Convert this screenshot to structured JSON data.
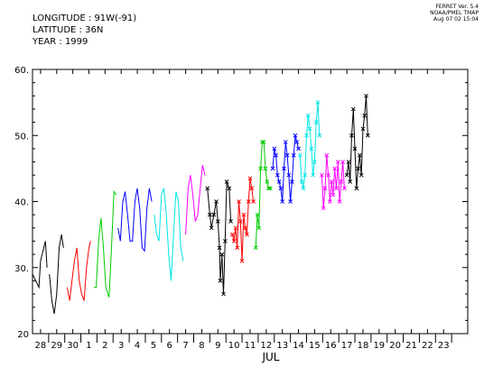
{
  "header": {
    "longitude": "LONGITUDE : 91W(-91)",
    "latitude": "LATITUDE : 36N",
    "year": "YEAR : 1999"
  },
  "credit": {
    "line1": "FERRET Ver. 5.4",
    "line2": "NOAA/PMEL TMAP",
    "line3": "Aug 07 02 15:04"
  },
  "chart_data": {
    "type": "line",
    "xlabel": "JUL",
    "ylabel": "",
    "ylim": [
      20,
      60
    ],
    "yticks": [
      20,
      30,
      40,
      50,
      60
    ],
    "ytick_labels": [
      "20",
      "30.",
      "40.",
      "50.",
      "60."
    ],
    "xlim": [
      -3.5,
      23.5
    ],
    "xticks": [
      {
        "value": -3,
        "label": "28"
      },
      {
        "value": -2,
        "label": "29"
      },
      {
        "value": -1,
        "label": "30"
      },
      {
        "value": 0,
        "label": "1"
      },
      {
        "value": 1,
        "label": "2"
      },
      {
        "value": 2,
        "label": "3"
      },
      {
        "value": 3,
        "label": "4"
      },
      {
        "value": 4,
        "label": "5"
      },
      {
        "value": 5,
        "label": "6"
      },
      {
        "value": 6,
        "label": "7"
      },
      {
        "value": 7,
        "label": "8"
      },
      {
        "value": 8,
        "label": "9"
      },
      {
        "value": 9,
        "label": "10"
      },
      {
        "value": 10,
        "label": "11"
      },
      {
        "value": 11,
        "label": "12"
      },
      {
        "value": 12,
        "label": "13"
      },
      {
        "value": 13,
        "label": "14"
      },
      {
        "value": 14,
        "label": "15"
      },
      {
        "value": 15,
        "label": "16"
      },
      {
        "value": 16,
        "label": "17"
      },
      {
        "value": 17,
        "label": "18"
      },
      {
        "value": 18,
        "label": "19"
      },
      {
        "value": 19,
        "label": "20"
      },
      {
        "value": 20,
        "label": "21"
      },
      {
        "value": 21,
        "label": "22"
      },
      {
        "value": 22,
        "label": "23"
      }
    ],
    "grid": false,
    "series": [
      {
        "color": "#000000",
        "markers": false,
        "points": [
          [
            -3.5,
            29
          ],
          [
            -3.3,
            28
          ],
          [
            -3.1,
            27
          ],
          [
            -3.0,
            31
          ],
          [
            -2.85,
            32.5
          ],
          [
            -2.7,
            34
          ],
          [
            -2.6,
            30
          ]
        ]
      },
      {
        "color": "#000000",
        "markers": false,
        "points": [
          [
            -2.45,
            29
          ],
          [
            -2.3,
            25
          ],
          [
            -2.15,
            23
          ],
          [
            -2.0,
            26
          ],
          [
            -1.85,
            33
          ],
          [
            -1.7,
            35
          ],
          [
            -1.58,
            33
          ]
        ]
      },
      {
        "color": "#ff0000",
        "markers": false,
        "points": [
          [
            -1.35,
            27
          ],
          [
            -1.2,
            25
          ],
          [
            -1.05,
            28
          ],
          [
            -0.9,
            31
          ],
          [
            -0.75,
            33
          ],
          [
            -0.6,
            28
          ],
          [
            -0.45,
            26
          ],
          [
            -0.3,
            25
          ],
          [
            -0.15,
            30
          ],
          [
            -0.0,
            33
          ],
          [
            0.1,
            34
          ]
        ]
      },
      {
        "color": "#00cc00",
        "markers": false,
        "points": [
          [
            0.3,
            27
          ],
          [
            0.45,
            27
          ],
          [
            0.6,
            34
          ],
          [
            0.75,
            37.5
          ],
          [
            0.9,
            33
          ],
          [
            1.05,
            27
          ],
          [
            1.25,
            25.5
          ],
          [
            1.4,
            33
          ],
          [
            1.55,
            41.5
          ],
          [
            1.7,
            41
          ]
        ]
      },
      {
        "color": "#0000ff",
        "markers": false,
        "points": [
          [
            1.8,
            36
          ],
          [
            1.95,
            34
          ],
          [
            2.1,
            40
          ],
          [
            2.25,
            41.5
          ],
          [
            2.4,
            38
          ],
          [
            2.55,
            34
          ],
          [
            2.7,
            34
          ],
          [
            2.85,
            40
          ],
          [
            3.0,
            42
          ],
          [
            3.15,
            39
          ],
          [
            3.3,
            33
          ],
          [
            3.45,
            32.5
          ],
          [
            3.6,
            39
          ],
          [
            3.75,
            42
          ],
          [
            3.9,
            40
          ]
        ]
      },
      {
        "color": "#00e5e5",
        "markers": false,
        "points": [
          [
            4.05,
            38
          ],
          [
            4.2,
            35
          ],
          [
            4.35,
            34
          ],
          [
            4.5,
            41
          ],
          [
            4.65,
            42
          ],
          [
            4.8,
            38
          ],
          [
            4.95,
            32
          ],
          [
            5.1,
            28
          ],
          [
            5.25,
            35
          ],
          [
            5.4,
            41.5
          ],
          [
            5.55,
            40
          ],
          [
            5.7,
            33
          ],
          [
            5.85,
            31
          ]
        ]
      },
      {
        "color": "#ff00ff",
        "markers": false,
        "points": [
          [
            6.0,
            35
          ],
          [
            6.15,
            42
          ],
          [
            6.3,
            44
          ],
          [
            6.45,
            41
          ],
          [
            6.6,
            37
          ],
          [
            6.75,
            38
          ],
          [
            6.9,
            42
          ],
          [
            7.05,
            45.5
          ],
          [
            7.2,
            44
          ]
        ]
      },
      {
        "color": "#000000",
        "markers": true,
        "points": [
          [
            7.35,
            42
          ],
          [
            7.5,
            38
          ],
          [
            7.6,
            36
          ],
          [
            7.75,
            38
          ],
          [
            7.9,
            40
          ],
          [
            8.0,
            37
          ],
          [
            8.1,
            33
          ],
          [
            8.15,
            28
          ],
          [
            8.25,
            32
          ],
          [
            8.35,
            26
          ],
          [
            8.45,
            34
          ],
          [
            8.55,
            43
          ],
          [
            8.7,
            42
          ],
          [
            8.8,
            37
          ]
        ]
      },
      {
        "color": "#ff0000",
        "markers": true,
        "points": [
          [
            8.9,
            35
          ],
          [
            9.0,
            34
          ],
          [
            9.1,
            36
          ],
          [
            9.2,
            33
          ],
          [
            9.3,
            40
          ],
          [
            9.4,
            37
          ],
          [
            9.5,
            31
          ],
          [
            9.6,
            38
          ],
          [
            9.7,
            36
          ],
          [
            9.8,
            35
          ],
          [
            9.9,
            40
          ],
          [
            10.0,
            43.5
          ],
          [
            10.1,
            42
          ],
          [
            10.2,
            40
          ]
        ]
      },
      {
        "color": "#00cc00",
        "markers": true,
        "points": [
          [
            10.35,
            33
          ],
          [
            10.45,
            38
          ],
          [
            10.55,
            36
          ],
          [
            10.65,
            45
          ],
          [
            10.75,
            49
          ],
          [
            10.85,
            49
          ],
          [
            10.95,
            45
          ],
          [
            11.05,
            43
          ],
          [
            11.15,
            42
          ],
          [
            11.25,
            42
          ]
        ]
      },
      {
        "color": "#0000ff",
        "markers": true,
        "points": [
          [
            11.4,
            45
          ],
          [
            11.5,
            48
          ],
          [
            11.6,
            47
          ],
          [
            11.7,
            44
          ],
          [
            11.8,
            43
          ],
          [
            11.9,
            42
          ],
          [
            12.0,
            40
          ],
          [
            12.1,
            45
          ],
          [
            12.2,
            49
          ],
          [
            12.3,
            47
          ],
          [
            12.4,
            44
          ],
          [
            12.5,
            40
          ],
          [
            12.6,
            43
          ],
          [
            12.7,
            47
          ],
          [
            12.8,
            50
          ],
          [
            12.9,
            49
          ],
          [
            13.0,
            48
          ]
        ]
      },
      {
        "color": "#00e5e5",
        "markers": true,
        "points": [
          [
            13.1,
            47
          ],
          [
            13.2,
            43
          ],
          [
            13.3,
            42
          ],
          [
            13.4,
            44
          ],
          [
            13.5,
            50
          ],
          [
            13.6,
            53
          ],
          [
            13.7,
            51
          ],
          [
            13.8,
            48
          ],
          [
            13.9,
            44
          ],
          [
            14.0,
            46
          ],
          [
            14.1,
            52
          ],
          [
            14.2,
            55
          ],
          [
            14.3,
            50
          ]
        ]
      },
      {
        "color": "#ff00ff",
        "markers": true,
        "points": [
          [
            14.45,
            44
          ],
          [
            14.55,
            39
          ],
          [
            14.65,
            42
          ],
          [
            14.75,
            47
          ],
          [
            14.85,
            44
          ],
          [
            14.95,
            40
          ],
          [
            15.05,
            43
          ],
          [
            15.15,
            41
          ],
          [
            15.25,
            45
          ],
          [
            15.35,
            42
          ],
          [
            15.45,
            46
          ],
          [
            15.55,
            40
          ],
          [
            15.65,
            43
          ],
          [
            15.75,
            46
          ],
          [
            15.85,
            42
          ]
        ]
      },
      {
        "color": "#000000",
        "markers": true,
        "points": [
          [
            16.0,
            44
          ],
          [
            16.1,
            46
          ],
          [
            16.2,
            43
          ],
          [
            16.3,
            50
          ],
          [
            16.4,
            54
          ],
          [
            16.5,
            48
          ],
          [
            16.6,
            42
          ],
          [
            16.7,
            45
          ],
          [
            16.8,
            47
          ],
          [
            16.9,
            44
          ],
          [
            17.0,
            51
          ],
          [
            17.1,
            53
          ],
          [
            17.2,
            56
          ],
          [
            17.3,
            50
          ]
        ]
      }
    ]
  }
}
